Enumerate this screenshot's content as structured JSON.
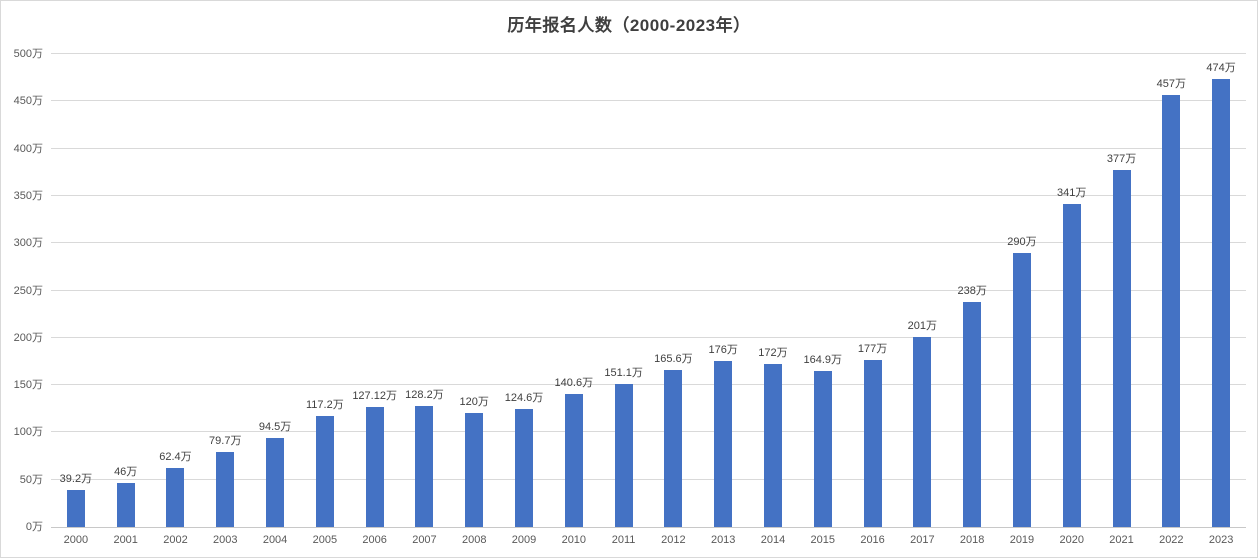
{
  "title": "历年报名人数（2000-2023年）",
  "chart_data": {
    "type": "bar",
    "title": "历年报名人数（2000-2023年）",
    "categories": [
      "2000",
      "2001",
      "2002",
      "2003",
      "2004",
      "2005",
      "2006",
      "2007",
      "2008",
      "2009",
      "2010",
      "2011",
      "2012",
      "2013",
      "2014",
      "2015",
      "2016",
      "2017",
      "2018",
      "2019",
      "2020",
      "2021",
      "2022",
      "2023"
    ],
    "values": [
      39.2,
      46,
      62.4,
      79.7,
      94.5,
      117.2,
      127.12,
      128.2,
      120,
      124.6,
      140.6,
      151.1,
      165.6,
      176,
      172,
      164.9,
      177,
      201,
      238,
      290,
      341,
      377,
      457,
      474
    ],
    "data_labels": [
      "39.2万",
      "46万",
      "62.4万",
      "79.7万",
      "94.5万",
      "117.2万",
      "127.12万",
      "128.2万",
      "120万",
      "124.6万",
      "140.6万",
      "151.1万",
      "165.6万",
      "176万",
      "172万",
      "164.9万",
      "177万",
      "201万",
      "238万",
      "290万",
      "341万",
      "377万",
      "457万",
      "474万"
    ],
    "y_tick_labels": [
      "0万",
      "50万",
      "100万",
      "150万",
      "200万",
      "250万",
      "300万",
      "350万",
      "400万",
      "450万",
      "500万"
    ],
    "xlabel": "",
    "ylabel": "",
    "ylim": [
      0,
      500
    ],
    "y_step": 50,
    "unit": "万",
    "grid": true,
    "legend_position": "none",
    "bar_color": "#4472c4",
    "gridline_color": "#d9d9d9",
    "axis_line_color": "#c8c8c8",
    "tick_label_color": "#595959",
    "data_label_color": "#404040",
    "title_color": "#3f3f3f",
    "background_color": "#ffffff"
  }
}
